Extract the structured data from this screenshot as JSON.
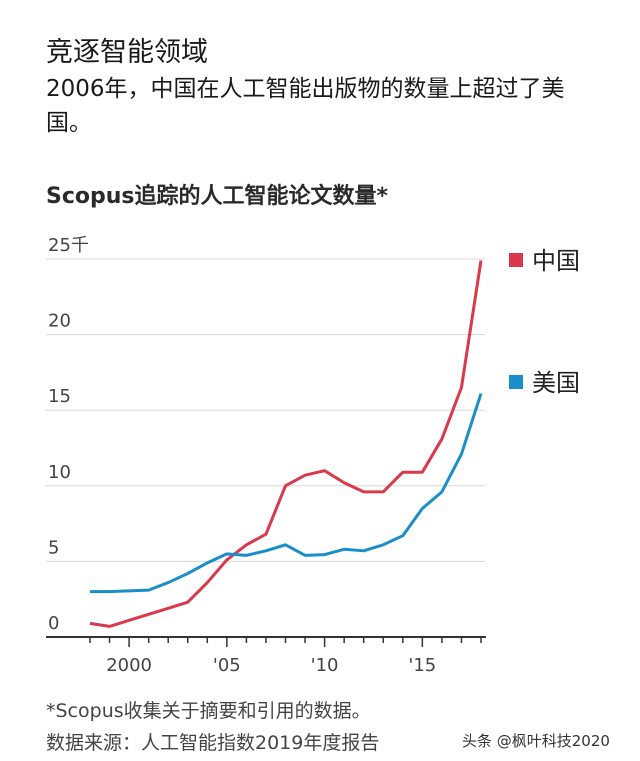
{
  "title": "竞逐智能领域",
  "subtitle": "2006年，中国在人工智能出版物的数量上超过了美国。",
  "footnote": "*Scopus收集关于摘要和引用的数据。",
  "source": "数据来源：人工智能指数2019年度报告",
  "watermark": "头条 @枫叶科技2020",
  "chart_data": {
    "type": "line",
    "title": "Scopus追踪的人工智能论文数量*",
    "xlabel": "",
    "ylabel": "",
    "ylim": [
      0,
      25
    ],
    "xlim": [
      1998,
      2018
    ],
    "grid": true,
    "legend_placement": "right",
    "y_ticks": [
      {
        "v": 0,
        "label": "0"
      },
      {
        "v": 5,
        "label": "5"
      },
      {
        "v": 10,
        "label": "10"
      },
      {
        "v": 15,
        "label": "15"
      },
      {
        "v": 20,
        "label": "20"
      },
      {
        "v": 25,
        "label": "25千"
      }
    ],
    "x_ticks": [
      {
        "v": 2000,
        "label": "2000"
      },
      {
        "v": 2005,
        "label": "'05"
      },
      {
        "v": 2010,
        "label": "'10"
      },
      {
        "v": 2015,
        "label": "'15"
      }
    ],
    "x": [
      1998,
      1999,
      2000,
      2001,
      2002,
      2003,
      2004,
      2005,
      2006,
      2007,
      2008,
      2009,
      2010,
      2011,
      2012,
      2013,
      2014,
      2015,
      2016,
      2017,
      2018
    ],
    "series": [
      {
        "name": "中国",
        "color": "#d9394a",
        "values": [
          0.9,
          0.7,
          1.1,
          1.5,
          1.9,
          2.3,
          3.6,
          5.1,
          6.1,
          6.8,
          10.0,
          10.7,
          11.0,
          10.2,
          9.6,
          9.6,
          10.9,
          10.9,
          13.1,
          16.5,
          24.9
        ]
      },
      {
        "name": "美国",
        "color": "#1a8ec8",
        "values": [
          3.0,
          3.0,
          3.05,
          3.1,
          3.6,
          4.2,
          4.9,
          5.5,
          5.4,
          5.7,
          6.1,
          5.4,
          5.45,
          5.8,
          5.7,
          6.1,
          6.7,
          8.5,
          9.6,
          12.1,
          16.1
        ]
      }
    ]
  }
}
